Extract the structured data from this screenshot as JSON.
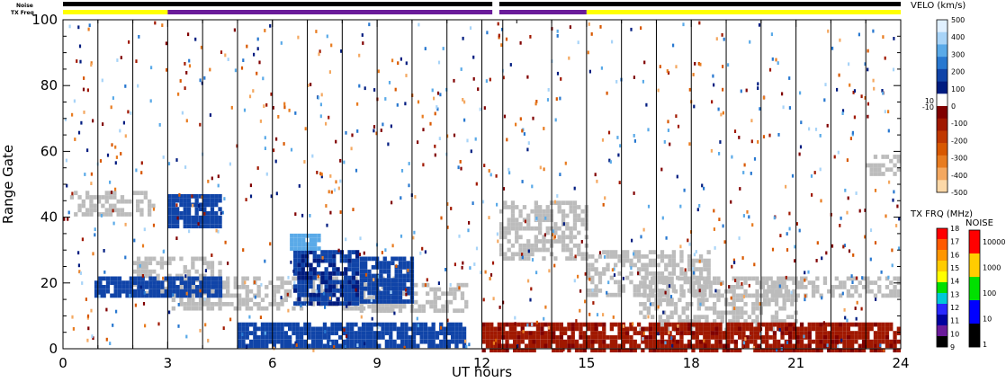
{
  "chart_data": {
    "type": "heatmap",
    "xlabel": "UT hours",
    "ylabel": "Range Gate",
    "xlim": [
      0,
      24
    ],
    "ylim": [
      0,
      100
    ],
    "x_ticks": [
      "0",
      "3",
      "6",
      "9",
      "12",
      "15",
      "18",
      "21",
      "24"
    ],
    "y_ticks": [
      "0",
      "20",
      "40",
      "60",
      "80",
      "100"
    ],
    "scan_boundaries_ut": [
      1,
      2,
      3,
      4,
      5,
      6,
      7,
      8,
      9,
      10,
      11,
      12,
      12.6,
      14,
      15,
      16,
      17,
      18,
      19,
      20,
      21,
      22,
      23,
      24
    ],
    "status_bars": {
      "noise_label": "Noise",
      "txfreq_label": "TX Freq",
      "noise_segments": [
        {
          "start": 0,
          "end": 12.3,
          "color": "#000000"
        },
        {
          "start": 12.5,
          "end": 24,
          "color": "#000000"
        }
      ],
      "txfreq_segments": [
        {
          "start": 0,
          "end": 3,
          "color": "#ffff00"
        },
        {
          "start": 3,
          "end": 12.3,
          "color": "#6a1b9a"
        },
        {
          "start": 12.5,
          "end": 15,
          "color": "#6a1b9a"
        },
        {
          "start": 15,
          "end": 24,
          "color": "#ffff00"
        }
      ]
    },
    "velocity_colorbar": {
      "title": "VELO (km/s)",
      "ticks": [
        "500",
        "400",
        "300",
        "200",
        "100",
        "0",
        "-100",
        "-200",
        "-300",
        "-400",
        "-500"
      ],
      "side_ticks": [
        "10",
        "-10"
      ],
      "colors": [
        "#e0f0ff",
        "#a8d4f8",
        "#5aaae8",
        "#2878d0",
        "#1044a8",
        "#001c80",
        "#ffffff",
        "#800000",
        "#a01800",
        "#c03800",
        "#d85800",
        "#e87c20",
        "#f4a860",
        "#fcd8a8"
      ]
    },
    "txfreq_colorbar": {
      "title": "TX FRQ (MHz)",
      "ticks": [
        "18",
        "17",
        "16",
        "15",
        "14",
        "13",
        "12",
        "11",
        "10",
        "9"
      ],
      "colors": [
        "#ff0000",
        "#ff5a00",
        "#ff9600",
        "#ffcc00",
        "#ffff00",
        "#00e000",
        "#00c8d8",
        "#2828ff",
        "#0000a0",
        "#6a1b9a",
        "#000000"
      ]
    },
    "noise_colorbar": {
      "title": "NOISE",
      "ticks": [
        "10000",
        "1000",
        "100",
        "10",
        "1"
      ],
      "colors": [
        "#ff0000",
        "#ffcc00",
        "#00e000",
        "#0000ff",
        "#000000"
      ]
    },
    "regions": [
      {
        "type": "ground_scatter",
        "x": [
          0.2,
          2.6
        ],
        "y": [
          41,
          48
        ],
        "value": 0
      },
      {
        "type": "ground_scatter",
        "x": [
          2.0,
          4.5
        ],
        "y": [
          17,
          28
        ],
        "value": 0
      },
      {
        "type": "ground_scatter",
        "x": [
          3.0,
          9.5
        ],
        "y": [
          12,
          22
        ],
        "value": 0
      },
      {
        "type": "ground_scatter",
        "x": [
          8.5,
          11.5
        ],
        "y": [
          12,
          20
        ],
        "value": 0
      },
      {
        "type": "ground_scatter",
        "x": [
          12.5,
          15.0
        ],
        "y": [
          27,
          45
        ],
        "value": 0
      },
      {
        "type": "ground_scatter",
        "x": [
          15.0,
          18.5
        ],
        "y": [
          17,
          30
        ],
        "value": 0
      },
      {
        "type": "ground_scatter",
        "x": [
          16.5,
          21.0
        ],
        "y": [
          6,
          22
        ],
        "value": 0
      },
      {
        "type": "ground_scatter",
        "x": [
          20.0,
          24.0
        ],
        "y": [
          16,
          22
        ],
        "value": 0
      },
      {
        "type": "ground_scatter",
        "x": [
          23.0,
          24.0
        ],
        "y": [
          53,
          59
        ],
        "value": 0
      },
      {
        "type": "velocity",
        "x": [
          6.6,
          8.4
        ],
        "y": [
          14,
          30
        ],
        "value": 100
      },
      {
        "type": "velocity",
        "x": [
          5.0,
          11.5
        ],
        "y": [
          1,
          8
        ],
        "value": 150
      },
      {
        "type": "velocity",
        "x": [
          0.9,
          4.5
        ],
        "y": [
          16,
          22
        ],
        "value": 150
      },
      {
        "type": "velocity",
        "x": [
          3.0,
          4.5
        ],
        "y": [
          37,
          47
        ],
        "value": 150
      },
      {
        "type": "velocity",
        "x": [
          8.5,
          10.0
        ],
        "y": [
          15,
          28
        ],
        "value": 150
      },
      {
        "type": "velocity",
        "x": [
          6.5,
          7.3
        ],
        "y": [
          31,
          35
        ],
        "value": 350
      },
      {
        "type": "velocity",
        "x": [
          12.0,
          24.0
        ],
        "y": [
          0,
          8
        ],
        "value": -100
      }
    ]
  }
}
